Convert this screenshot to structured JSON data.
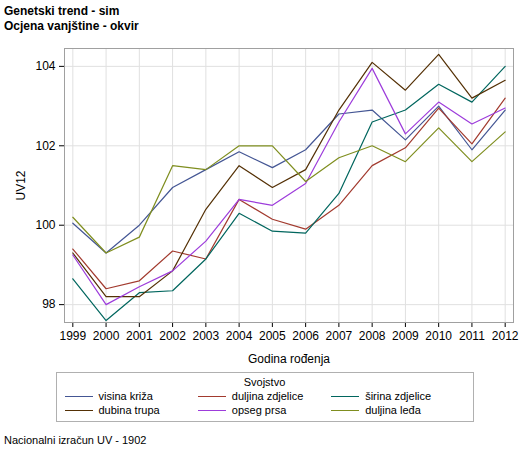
{
  "chart_data": {
    "type": "line",
    "title": "Genetski trend - sim",
    "subtitle": "Ocjena vanjštine - okvir",
    "x_label": "Godina rođenja",
    "y_label": "UV12",
    "legend_title": "Svojstvo",
    "caption": "Nacionalni izračun UV - 1902",
    "x": [
      1999,
      2000,
      2001,
      2002,
      2003,
      2004,
      2005,
      2006,
      2007,
      2008,
      2009,
      2010,
      2011,
      2012
    ],
    "xlim": [
      1998.75,
      2012.25
    ],
    "xticks": [
      1999,
      2000,
      2001,
      2002,
      2003,
      2004,
      2005,
      2006,
      2007,
      2008,
      2009,
      2010,
      2011,
      2012
    ],
    "ylim": [
      97.55,
      104.45
    ],
    "yticks": [
      98,
      100,
      102,
      104
    ],
    "grid": true,
    "legend": "bottom",
    "series": [
      {
        "name": "visina križa",
        "color": "#445694",
        "values": [
          100.05,
          99.3,
          100.0,
          100.95,
          101.4,
          101.85,
          101.45,
          101.9,
          102.8,
          102.9,
          102.15,
          103.0,
          101.9,
          102.9
        ]
      },
      {
        "name": "duljina zdjelice",
        "color": "#A23A2E",
        "values": [
          99.4,
          98.4,
          98.6,
          99.35,
          99.15,
          100.65,
          100.15,
          99.9,
          100.5,
          101.5,
          101.95,
          102.95,
          102.05,
          103.2
        ]
      },
      {
        "name": "širina zdjelice",
        "color": "#01665E",
        "values": [
          98.65,
          97.6,
          98.3,
          98.35,
          99.15,
          100.3,
          99.85,
          99.8,
          100.8,
          102.6,
          102.9,
          103.55,
          103.1,
          104.0
        ]
      },
      {
        "name": "dubina trupa",
        "color": "#543005",
        "values": [
          99.3,
          98.2,
          98.2,
          98.85,
          100.4,
          101.5,
          100.95,
          101.4,
          102.9,
          104.1,
          103.4,
          104.3,
          103.2,
          103.65
        ]
      },
      {
        "name": "opseg prsa",
        "color": "#9D3CDB",
        "values": [
          99.25,
          98.0,
          98.45,
          98.85,
          99.6,
          100.65,
          100.5,
          101.05,
          102.6,
          103.95,
          102.3,
          103.1,
          102.55,
          102.95
        ]
      },
      {
        "name": "duljina leđa",
        "color": "#7F8E1F",
        "values": [
          100.2,
          99.3,
          99.7,
          101.5,
          101.4,
          102.0,
          102.0,
          101.1,
          101.7,
          102.0,
          101.6,
          102.45,
          101.6,
          102.35
        ]
      }
    ]
  }
}
